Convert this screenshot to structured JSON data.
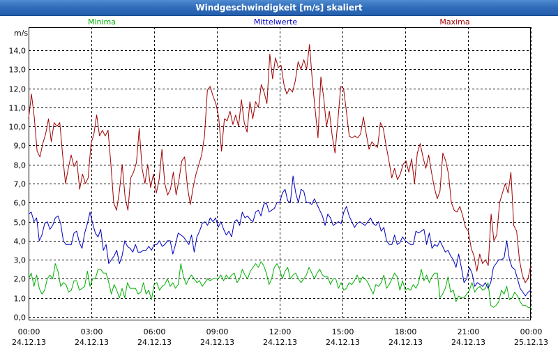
{
  "window": {
    "title": "Windgeschwindigkeit [m/s] skaliert"
  },
  "chart_data": {
    "type": "line",
    "title": "Windgeschwindigkeit [m/s] skaliert",
    "ylabel": "m/s",
    "xlabel": "",
    "ylim": [
      0,
      15
    ],
    "xlim": [
      0,
      24
    ],
    "grid": true,
    "y_ticks": [
      {
        "value": 0,
        "label": "0,0"
      },
      {
        "value": 1,
        "label": "1,0"
      },
      {
        "value": 2,
        "label": "2,0"
      },
      {
        "value": 3,
        "label": "3,0"
      },
      {
        "value": 4,
        "label": "4,0"
      },
      {
        "value": 5,
        "label": "5,0"
      },
      {
        "value": 6,
        "label": "6,0"
      },
      {
        "value": 7,
        "label": "7,0"
      },
      {
        "value": 8,
        "label": "8,0"
      },
      {
        "value": 9,
        "label": "9,0"
      },
      {
        "value": 10,
        "label": "10,0"
      },
      {
        "value": 11,
        "label": "11,0"
      },
      {
        "value": 12,
        "label": "12,0"
      },
      {
        "value": 13,
        "label": "13,0"
      },
      {
        "value": 14,
        "label": "14,0"
      }
    ],
    "x_ticks": [
      {
        "value": 0,
        "time": "00:00",
        "date": "24.12.13"
      },
      {
        "value": 3,
        "time": "03:00",
        "date": "24.12.13"
      },
      {
        "value": 6,
        "time": "06:00",
        "date": "24.12.13"
      },
      {
        "value": 9,
        "time": "09:00",
        "date": "24.12.13"
      },
      {
        "value": 12,
        "time": "12:00",
        "date": "24.12.13"
      },
      {
        "value": 15,
        "time": "15:00",
        "date": "24.12.13"
      },
      {
        "value": 18,
        "time": "18:00",
        "date": "24.12.13"
      },
      {
        "value": 21,
        "time": "21:00",
        "date": "24.12.13"
      },
      {
        "value": 24,
        "time": "00:00",
        "date": "25.12.13"
      }
    ],
    "sample_interval_hours": 0.1667,
    "series": [
      {
        "name": "Minima",
        "color": "#00b000",
        "values": [
          2.0,
          2.3,
          1.6,
          2.2,
          1.5,
          1.2,
          1.4,
          2.0,
          2.2,
          2.0,
          2.8,
          2.4,
          1.6,
          1.8,
          1.7,
          1.3,
          1.4,
          1.9,
          1.9,
          1.4,
          1.5,
          1.6,
          2.4,
          1.6,
          2.0,
          2.0,
          2.5,
          2.5,
          2.3,
          2.3,
          1.8,
          1.2,
          1.7,
          1.4,
          1.0,
          1.5,
          1.0,
          1.8,
          1.5,
          1.5,
          1.5,
          1.2,
          1.3,
          1.8,
          1.2,
          1.4,
          0.9,
          1.7,
          1.8,
          1.4,
          1.6,
          1.7,
          2.0,
          1.6,
          1.8,
          1.5,
          1.7,
          2.8,
          2.1,
          1.7,
          2.0,
          2.2,
          2.0,
          1.8,
          1.9,
          1.6,
          1.8,
          2.0,
          1.9,
          2.0,
          2.0,
          2.0,
          2.2,
          1.9,
          2.2,
          2.0,
          2.2,
          2.3,
          1.8,
          2.0,
          2.5,
          2.2,
          2.0,
          2.4,
          2.6,
          2.8,
          2.6,
          2.9,
          2.7,
          2.3,
          1.7,
          2.0,
          2.6,
          2.8,
          2.5,
          2.0,
          2.4,
          2.6,
          2.0,
          2.2,
          2.3,
          2.0,
          1.8,
          2.0,
          2.2,
          2.6,
          2.3,
          2.0,
          2.3,
          2.5,
          2.2,
          2.1,
          2.1,
          1.7,
          2.0,
          2.0,
          1.5,
          1.8,
          1.4,
          1.5,
          1.8,
          1.7,
          1.9,
          2.2,
          1.8,
          2.1,
          2.0,
          1.8,
          1.5,
          1.2,
          1.7,
          1.6,
          1.8,
          2.2,
          1.5,
          1.7,
          2.0,
          2.3,
          2.1,
          1.4,
          1.9,
          1.4,
          1.5,
          1.4,
          1.7,
          1.5,
          1.8,
          2.5,
          1.9,
          2.2,
          1.8,
          2.1,
          2.3,
          2.3,
          1.0,
          1.2,
          1.5,
          2.1,
          1.3,
          1.4,
          0.8,
          1.1,
          1.0,
          1.0,
          1.2,
          1.4,
          1.8,
          1.3,
          1.5,
          1.6,
          1.4,
          1.5,
          1.8,
          0.6,
          0.5,
          0.6,
          0.8,
          1.4,
          1.2,
          1.6,
          0.9,
          1.0,
          1.3,
          1.1,
          0.8,
          0.6,
          0.6,
          0.5,
          0.5
        ],
        "legend_label": "Minima"
      },
      {
        "name": "Mittelwerte",
        "color": "#0000c0",
        "values": [
          5.4,
          5.5,
          5.0,
          5.2,
          4.0,
          4.3,
          4.9,
          5.0,
          4.6,
          4.8,
          5.2,
          5.3,
          4.9,
          4.0,
          3.8,
          3.8,
          3.8,
          4.4,
          4.5,
          3.9,
          3.6,
          4.4,
          4.9,
          5.5,
          4.9,
          4.4,
          4.2,
          4.6,
          3.5,
          3.8,
          2.8,
          3.0,
          3.2,
          3.5,
          2.8,
          3.2,
          4.0,
          3.7,
          3.6,
          3.4,
          3.8,
          3.4,
          3.4,
          3.5,
          3.5,
          3.7,
          3.5,
          3.8,
          3.8,
          4.0,
          3.7,
          3.8,
          4.0,
          4.0,
          3.3,
          3.8,
          4.4,
          4.3,
          4.2,
          4.0,
          3.8,
          4.3,
          3.4,
          4.2,
          4.5,
          4.9,
          5.0,
          4.8,
          5.2,
          5.0,
          5.2,
          4.7,
          5.0,
          4.6,
          4.3,
          4.5,
          4.2,
          5.0,
          5.1,
          4.8,
          5.5,
          5.2,
          5.3,
          5.1,
          5.0,
          5.5,
          5.6,
          5.3,
          5.9,
          6.0,
          5.5,
          5.6,
          5.7,
          6.0,
          6.0,
          6.5,
          6.7,
          6.1,
          6.0,
          7.4,
          6.5,
          6.0,
          6.7,
          6.6,
          6.0,
          6.0,
          5.9,
          6.2,
          5.9,
          5.6,
          5.3,
          4.8,
          5.4,
          5.2,
          4.8,
          4.9,
          5.0,
          4.9,
          5.5,
          5.8,
          5.3,
          5.0,
          4.7,
          4.9,
          5.0,
          4.9,
          4.8,
          5.0,
          5.2,
          4.9,
          4.8,
          5.0,
          4.5,
          4.7,
          4.0,
          3.8,
          3.8,
          4.3,
          3.8,
          3.9,
          4.2,
          4.0,
          3.9,
          3.8,
          3.8,
          4.5,
          4.4,
          4.5,
          4.6,
          3.8,
          4.4,
          3.6,
          3.8,
          3.7,
          4.0,
          3.7,
          3.4,
          3.5,
          3.2,
          3.0,
          2.6,
          3.3,
          2.6,
          1.8,
          2.0,
          2.6,
          2.3,
          1.6,
          1.8,
          1.7,
          1.6,
          1.8,
          1.5,
          1.8,
          2.6,
          2.8,
          3.0,
          3.0,
          3.1,
          4.0,
          3.0,
          2.6,
          2.5,
          2.0,
          1.5,
          1.3,
          1.1,
          1.3,
          1.4
        ]
      },
      {
        "name": "Maxima",
        "color": "#a00000",
        "values": [
          10.4,
          11.7,
          10.5,
          8.7,
          8.4,
          9.1,
          9.6,
          10.4,
          9.2,
          10.2,
          10.0,
          10.2,
          8.5,
          7.0,
          7.8,
          8.5,
          7.9,
          8.2,
          6.7,
          7.5,
          7.0,
          7.3,
          9.1,
          9.6,
          10.6,
          9.5,
          9.8,
          9.5,
          9.8,
          8.0,
          6.0,
          5.6,
          6.6,
          8.0,
          6.3,
          5.6,
          7.3,
          7.6,
          8.1,
          9.9,
          7.8,
          7.0,
          8.0,
          6.8,
          7.5,
          6.5,
          7.2,
          8.8,
          7.0,
          6.4,
          6.7,
          7.6,
          6.4,
          7.2,
          8.2,
          8.4,
          6.8,
          5.9,
          6.8,
          7.5,
          8.0,
          8.5,
          9.5,
          11.9,
          12.1,
          11.6,
          11.2,
          10.5,
          8.7,
          10.4,
          10.3,
          10.8,
          10.1,
          10.6,
          10.0,
          11.4,
          10.2,
          9.7,
          11.3,
          10.4,
          11.3,
          11.0,
          12.2,
          11.8,
          11.2,
          13.8,
          12.5,
          13.6,
          13.1,
          13.2,
          12.2,
          11.7,
          12.0,
          11.8,
          12.4,
          13.4,
          13.0,
          13.5,
          13.0,
          14.3,
          12.4,
          10.9,
          9.4,
          12.6,
          11.5,
          10.0,
          10.8,
          9.5,
          8.6,
          10.3,
          12.1,
          12.0,
          10.8,
          9.5,
          9.4,
          9.5,
          9.4,
          9.6,
          10.5,
          9.6,
          8.8,
          9.2,
          9.0,
          8.9,
          10.2,
          9.9,
          9.0,
          8.2,
          7.3,
          7.8,
          7.2,
          7.5,
          8.0,
          8.2,
          7.6,
          8.3,
          7.0,
          8.6,
          9.1,
          8.4,
          7.8,
          8.5,
          7.6,
          6.8,
          6.2,
          6.6,
          8.6,
          8.2,
          7.5,
          6.0,
          5.6,
          5.5,
          5.8,
          5.3,
          4.7,
          4.5,
          3.6,
          3.2,
          2.4,
          3.3,
          2.8,
          3.0,
          2.7,
          5.4,
          4.0,
          4.3,
          6.0,
          6.5,
          7.0,
          6.5,
          7.6,
          4.8,
          4.5,
          3.0,
          2.2,
          1.8,
          2.0,
          2.7
        ]
      }
    ]
  }
}
